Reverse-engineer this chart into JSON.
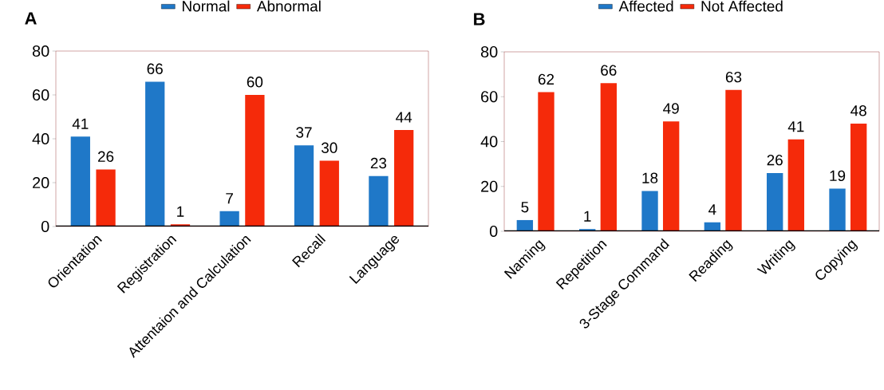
{
  "chart_data": [
    {
      "type": "bar",
      "title": "A",
      "categories": [
        "Orientation",
        "Registration",
        "Attentaion and Calculation",
        "Recall",
        "Language"
      ],
      "series": [
        {
          "name": "Normal",
          "color": "#1f78c8",
          "values": [
            41,
            66,
            7,
            37,
            23
          ]
        },
        {
          "name": "Abnormal",
          "color": "#f52a0a",
          "values": [
            26,
            1,
            60,
            30,
            44
          ]
        }
      ],
      "ylim": [
        0,
        80
      ],
      "yticks": [
        0,
        20,
        40,
        60,
        80
      ],
      "legend": "top",
      "data_labels": true
    },
    {
      "type": "bar",
      "title": "B",
      "categories": [
        "Naming",
        "Repetition",
        "3-Stage Command",
        "Reading",
        "Writing",
        "Copying"
      ],
      "series": [
        {
          "name": "Affected",
          "color": "#1f78c8",
          "values": [
            5,
            1,
            18,
            4,
            26,
            19
          ]
        },
        {
          "name": "Not Affected",
          "color": "#f52a0a",
          "values": [
            62,
            66,
            49,
            63,
            41,
            48
          ]
        }
      ],
      "ylim": [
        0,
        80
      ],
      "yticks": [
        0,
        20,
        40,
        60,
        80
      ],
      "legend": "top",
      "data_labels": true
    }
  ]
}
